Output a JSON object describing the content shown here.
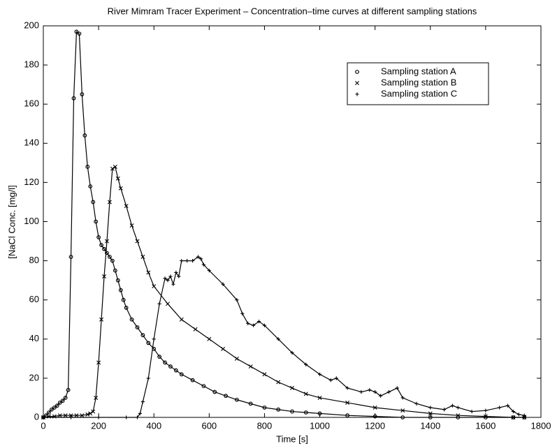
{
  "chart_data": {
    "type": "line",
    "title": "River Mimram Tracer Experiment – Concentration–time curves at different sampling stations",
    "xlabel": "Time [s]",
    "ylabel": "[NaCl Conc. [mg/l]",
    "xlim": [
      0,
      1800
    ],
    "xticks": [
      0,
      200,
      400,
      600,
      800,
      1000,
      1200,
      1400,
      1600,
      1800
    ],
    "ylim": [
      0,
      200
    ],
    "yticks": [
      0,
      20,
      40,
      60,
      80,
      100,
      120,
      140,
      160,
      180,
      200
    ],
    "grid": false,
    "legend": "upper right",
    "series": [
      {
        "name": "Sampling station A",
        "color": "#000000",
        "marker": "circle",
        "x": [
          0,
          10,
          20,
          30,
          40,
          50,
          60,
          70,
          80,
          90,
          100,
          110,
          120,
          130,
          140,
          150,
          160,
          170,
          180,
          190,
          200,
          210,
          220,
          230,
          240,
          250,
          260,
          270,
          280,
          290,
          300,
          320,
          340,
          360,
          380,
          400,
          420,
          440,
          460,
          480,
          500,
          540,
          580,
          620,
          660,
          700,
          750,
          800,
          850,
          900,
          950,
          1000,
          1100,
          1200,
          1300,
          1400,
          1500,
          1600,
          1700,
          1740
        ],
        "values": [
          0,
          1,
          2.5,
          4,
          5,
          6,
          7.5,
          8.5,
          10,
          14,
          82,
          163,
          197,
          196,
          165,
          144,
          128,
          118,
          110,
          100,
          92,
          88,
          86,
          84,
          82,
          80,
          75,
          70,
          65,
          60,
          56,
          50,
          46,
          42,
          38,
          35,
          31,
          28,
          26,
          24,
          22,
          19,
          16,
          13,
          11,
          9,
          7,
          5,
          4,
          3,
          2.5,
          2,
          1,
          0.5,
          0,
          0,
          0,
          0,
          0,
          0
        ]
      },
      {
        "name": "Sampling station B",
        "color": "#000000",
        "marker": "x",
        "x": [
          0,
          20,
          40,
          60,
          80,
          100,
          120,
          140,
          160,
          170,
          180,
          190,
          200,
          210,
          220,
          230,
          240,
          250,
          260,
          270,
          280,
          300,
          320,
          340,
          360,
          380,
          400,
          450,
          500,
          550,
          600,
          650,
          700,
          750,
          800,
          850,
          900,
          950,
          1000,
          1100,
          1200,
          1300,
          1400,
          1500,
          1600,
          1700,
          1740
        ],
        "values": [
          0,
          0.5,
          0.5,
          1,
          1,
          1,
          1,
          1,
          1.5,
          2,
          3,
          10,
          28,
          50,
          72,
          90,
          110,
          127,
          128,
          122,
          117,
          108,
          98,
          90,
          82,
          74,
          67,
          58,
          50,
          45,
          40,
          35,
          30,
          26,
          22,
          18,
          15,
          12,
          10,
          7.5,
          5,
          3.5,
          2,
          1,
          0.5,
          0,
          0
        ]
      },
      {
        "name": "Sampling station C",
        "color": "#000000",
        "marker": "plus",
        "x": [
          0,
          100,
          200,
          300,
          340,
          350,
          360,
          380,
          400,
          420,
          440,
          450,
          460,
          470,
          480,
          490,
          500,
          520,
          540,
          560,
          570,
          580,
          600,
          650,
          700,
          720,
          740,
          760,
          780,
          800,
          850,
          900,
          950,
          1000,
          1040,
          1060,
          1100,
          1150,
          1180,
          1200,
          1220,
          1250,
          1280,
          1300,
          1350,
          1400,
          1450,
          1480,
          1500,
          1550,
          1600,
          1650,
          1680,
          1700,
          1720,
          1740
        ],
        "values": [
          0,
          0,
          0,
          0,
          0,
          2,
          8,
          20,
          40,
          58,
          71,
          70,
          72,
          68,
          74,
          72,
          80,
          80,
          80,
          82,
          81,
          78,
          75,
          68,
          60,
          53,
          48,
          47,
          49,
          47,
          40,
          33,
          27,
          22,
          19,
          20,
          15,
          13,
          14,
          13,
          11,
          13,
          15,
          10,
          7,
          5,
          4,
          6,
          5,
          3,
          3.5,
          5,
          6,
          3,
          1.5,
          1
        ]
      }
    ]
  }
}
